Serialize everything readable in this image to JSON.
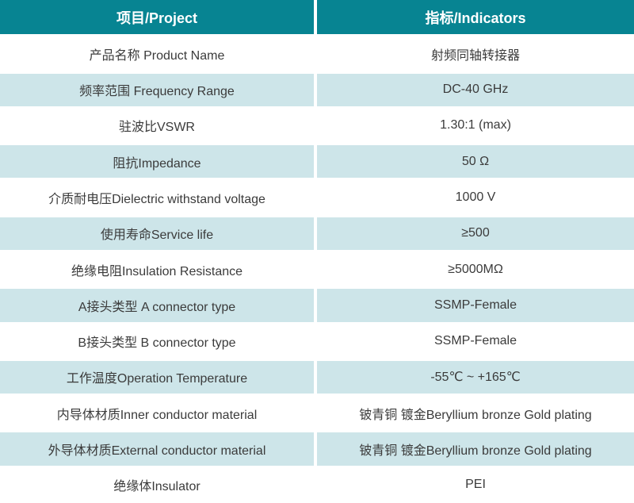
{
  "table": {
    "headers": [
      {
        "label": "项目/Project"
      },
      {
        "label": "指标/Indicators"
      }
    ],
    "rows": [
      {
        "project": "产品名称 Product Name",
        "indicator": "射频同轴转接器"
      },
      {
        "project": "频率范围 Frequency Range",
        "indicator": "DC-40 GHz"
      },
      {
        "project": "驻波比VSWR",
        "indicator": "1.30:1 (max)"
      },
      {
        "project": "阻抗Impedance",
        "indicator": "50 Ω"
      },
      {
        "project": "介质耐电压Dielectric withstand voltage",
        "indicator": "1000 V"
      },
      {
        "project": "使用寿命Service life",
        "indicator": "≥500"
      },
      {
        "project": "绝缘电阻Insulation Resistance",
        "indicator": "≥5000MΩ"
      },
      {
        "project": "A接头类型 A connector type",
        "indicator": "SSMP-Female"
      },
      {
        "project": "B接头类型 B connector type",
        "indicator": "SSMP-Female"
      },
      {
        "project": "工作温度Operation Temperature",
        "indicator": "-55℃ ~ +165℃"
      },
      {
        "project": "内导体材质Inner conductor material",
        "indicator": "铍青铜 镀金Beryllium bronze Gold plating"
      },
      {
        "project": "外导体材质External conductor material",
        "indicator": "铍青铜 镀金Beryllium bronze Gold plating"
      },
      {
        "project": "绝缘体Insulator",
        "indicator": "PEI"
      }
    ]
  },
  "colors": {
    "header_bg": "#078492",
    "header_text": "#ffffff",
    "row_bg": "#ffffff",
    "row_alt_bg": "#cde5e9",
    "body_text": "#3b3b3b",
    "divider": "#ffffff"
  }
}
